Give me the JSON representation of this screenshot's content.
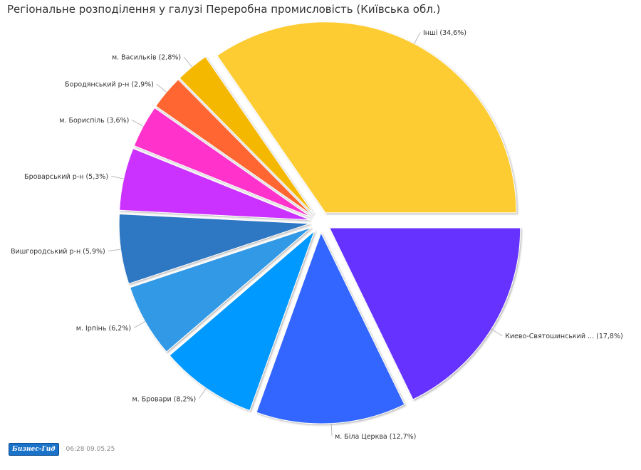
{
  "title": "Регіональне розподілення у галузі Переробна промисловість (Київська обл.)",
  "chart_data": {
    "type": "pie",
    "title": "Регіональне розподілення у галузі Переробна промисловість (Київська обл.)",
    "slices": [
      {
        "label": "Киево-Святошинський ... (17,8%)",
        "value": 17.8,
        "color": "#6633ff"
      },
      {
        "label": "м. Біла Церква (12,7%)",
        "value": 12.7,
        "color": "#3366ff"
      },
      {
        "label": "м. Бровари (8,2%)",
        "value": 8.2,
        "color": "#0099ff"
      },
      {
        "label": "м. Ірпінь (6,2%)",
        "value": 6.2,
        "color": "#3399e6"
      },
      {
        "label": "Вишгородський р-н (5,9%)",
        "value": 5.9,
        "color": "#2e77c2"
      },
      {
        "label": "Броварський р-н (5,3%)",
        "value": 5.3,
        "color": "#cc33ff"
      },
      {
        "label": "м. Бориспіль (3,6%)",
        "value": 3.6,
        "color": "#ff33cc"
      },
      {
        "label": "Бородянський р-н (2,9%)",
        "value": 2.9,
        "color": "#ff6633"
      },
      {
        "label": "м. Васильків (2,8%)",
        "value": 2.8,
        "color": "#f5b800"
      },
      {
        "label": "Інші (34,6%)",
        "value": 34.6,
        "color": "#fccc33"
      }
    ]
  },
  "footer": {
    "brand": "Бизнес-Гид",
    "timestamp": "06:28 09.05.25"
  }
}
